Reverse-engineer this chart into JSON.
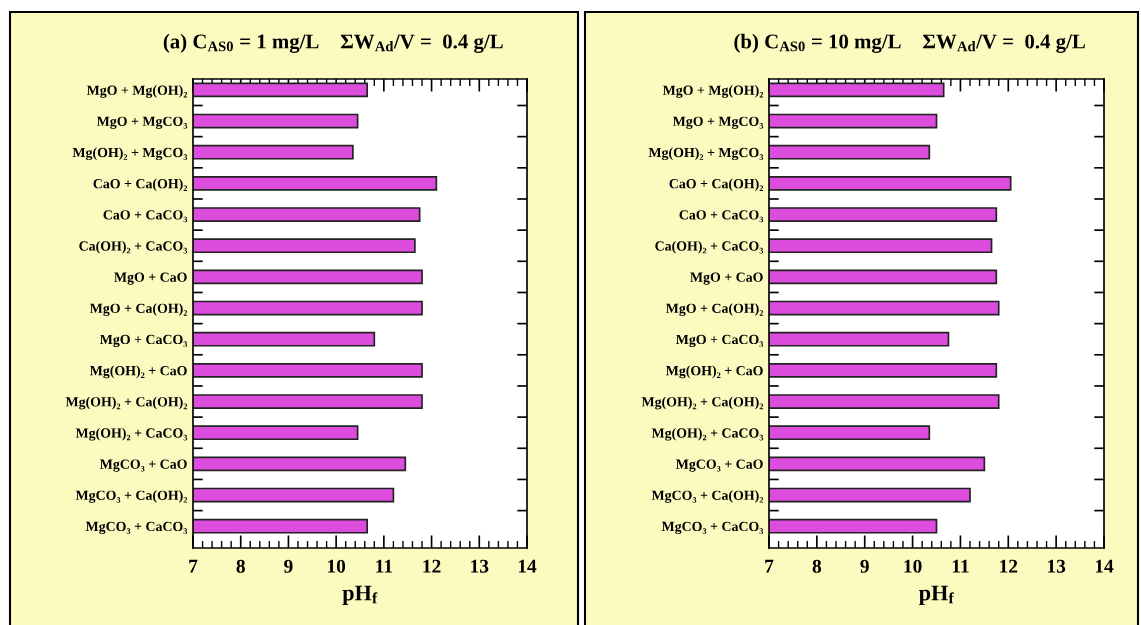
{
  "chart_data": [
    {
      "type": "bar",
      "orientation": "horizontal",
      "title": "(a) C$_{AS0}$ = 1 mg/L    ΣW$_{Ad}$/V =  0.4 g/L",
      "xlabel": "pH$_{f}$",
      "categories": [
        "MgO + Mg(OH)₂",
        "MgO + MgCO₃",
        "Mg(OH)₂ + MgCO₃",
        "CaO + Ca(OH)₂",
        "CaO + CaCO₃",
        "Ca(OH)₂ + CaCO₃",
        "MgO + CaO",
        "MgO + Ca(OH)₂",
        "MgO + CaCO₃",
        "Mg(OH)₂ + CaO",
        "Mg(OH)₂ + Ca(OH)₂",
        "Mg(OH)₂ + CaCO₃",
        "MgCO₃ + CaO",
        "MgCO₃ + Ca(OH)₂",
        "MgCO₃ + CaCO₃"
      ],
      "values": [
        10.65,
        10.45,
        10.35,
        12.1,
        11.75,
        11.65,
        11.8,
        11.8,
        10.8,
        11.8,
        11.8,
        10.45,
        11.45,
        11.2,
        10.65
      ],
      "color": "#dd4ddd",
      "xlim": [
        7,
        14
      ],
      "xticks": [
        7,
        8,
        9,
        10,
        11,
        12,
        13,
        14
      ]
    },
    {
      "type": "bar",
      "orientation": "horizontal",
      "title": "(b) C$_{AS0}$ = 10 mg/L    ΣW$_{Ad}$/V =  0.4 g/L",
      "xlabel": "pH$_{f}$",
      "categories": [
        "MgO + Mg(OH)₂",
        "MgO + MgCO₃",
        "Mg(OH)₂ + MgCO₃",
        "CaO + Ca(OH)₂",
        "CaO + CaCO₃",
        "Ca(OH)₂ + CaCO₃",
        "MgO + CaO",
        "MgO + Ca(OH)₂",
        "MgO + CaCO₃",
        "Mg(OH)₂ + CaO",
        "Mg(OH)₂ + Ca(OH)₂",
        "Mg(OH)₂ + CaCO₃",
        "MgCO₃ + CaO",
        "MgCO₃ + Ca(OH)₂",
        "MgCO₃ + CaCO₃"
      ],
      "values": [
        10.65,
        10.5,
        10.35,
        12.05,
        11.75,
        11.65,
        11.75,
        11.8,
        10.75,
        11.75,
        11.8,
        10.35,
        11.5,
        11.2,
        10.5
      ],
      "color": "#dd4ddd",
      "xlim": [
        7,
        14
      ],
      "xticks": [
        7,
        8,
        9,
        10,
        11,
        12,
        13,
        14
      ]
    }
  ]
}
